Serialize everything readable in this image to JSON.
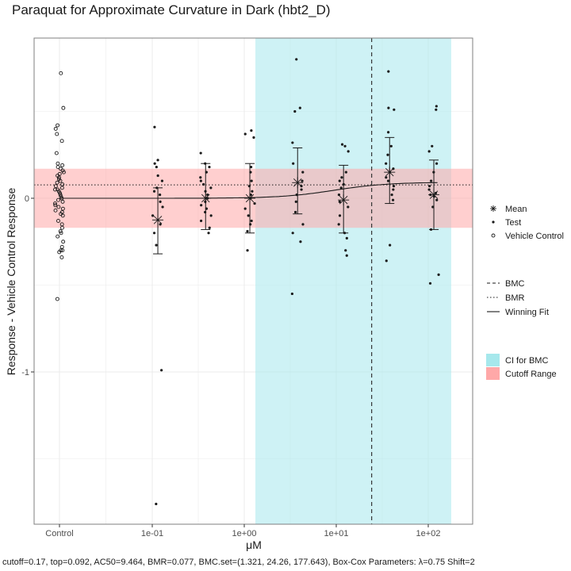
{
  "chart_data": {
    "type": "scatter",
    "title": "Paraquat for Approximate Curvature in Dark (hbt2_D)",
    "xlabel": "μM",
    "ylabel": "Response - Vehicle Control Response",
    "x_scale": "log10",
    "x_ticks": [
      {
        "label": "Control",
        "kind": "control"
      },
      {
        "label": "1e-01",
        "value": 0.1
      },
      {
        "label": "1e+00",
        "value": 1
      },
      {
        "label": "1e+01",
        "value": 10
      },
      {
        "label": "1e+02",
        "value": 100
      }
    ],
    "y_ticks": [
      {
        "label": "0",
        "value": 0
      },
      {
        "label": "-1",
        "value": -1
      }
    ],
    "ylim": [
      -1.88,
      0.93
    ],
    "grid": true,
    "ci_for_bmc": [
      1.321,
      177.643
    ],
    "cutoff_range": [
      -0.17,
      0.17
    ],
    "bmr": 0.077,
    "bmc": 24.26,
    "vehicle_control": [
      0.72,
      0.52,
      0.42,
      0.4,
      0.37,
      0.33,
      0.26,
      0.2,
      0.19,
      0.18,
      0.17,
      0.16,
      0.15,
      0.14,
      0.13,
      0.12,
      0.11,
      0.1,
      0.09,
      0.08,
      0.07,
      0.06,
      0.05,
      0.05,
      0.04,
      0.03,
      0.02,
      0.01,
      0.0,
      -0.01,
      -0.02,
      -0.03,
      -0.04,
      -0.05,
      -0.06,
      -0.07,
      -0.08,
      -0.09,
      -0.1,
      -0.13,
      -0.15,
      -0.17,
      -0.19,
      -0.2,
      -0.22,
      -0.25,
      -0.28,
      -0.3,
      -0.3,
      -0.31,
      -0.34,
      -0.58
    ],
    "test_groups": [
      {
        "conc": 0.115,
        "mean": -0.125,
        "err_low": -0.32,
        "err_high": 0.06,
        "points": [
          0.41,
          0.22,
          0.2,
          0.18,
          0.13,
          0.1,
          0.06,
          0.04,
          0.02,
          -0.02,
          -0.05,
          -0.1,
          -0.15,
          -0.2,
          -0.27,
          -0.99,
          -1.76
        ]
      },
      {
        "conc": 0.38,
        "mean": 0.0,
        "err_low": -0.18,
        "err_high": 0.2,
        "points": [
          0.26,
          0.2,
          0.18,
          0.15,
          0.12,
          0.1,
          0.08,
          0.06,
          0.04,
          0.02,
          0.0,
          -0.02,
          -0.04,
          -0.06,
          -0.08,
          -0.1,
          -0.13,
          -0.17,
          -0.2
        ]
      },
      {
        "conc": 1.15,
        "mean": 0.0,
        "err_low": -0.2,
        "err_high": 0.2,
        "points": [
          0.39,
          0.37,
          0.35,
          0.18,
          0.15,
          0.1,
          0.07,
          0.04,
          0.02,
          0.0,
          -0.03,
          -0.06,
          -0.1,
          -0.13,
          -0.15,
          -0.19,
          -0.3
        ]
      },
      {
        "conc": 3.8,
        "mean": 0.09,
        "err_low": -0.09,
        "err_high": 0.29,
        "points": [
          0.8,
          0.52,
          0.5,
          0.32,
          0.2,
          0.15,
          0.1,
          0.07,
          0.05,
          0.02,
          -0.02,
          -0.08,
          -0.15,
          -0.2,
          -0.25,
          -0.55
        ]
      },
      {
        "conc": 12.0,
        "mean": -0.01,
        "err_low": -0.2,
        "err_high": 0.19,
        "points": [
          0.31,
          0.3,
          0.27,
          0.15,
          0.12,
          0.1,
          0.08,
          0.06,
          0.02,
          -0.02,
          -0.05,
          -0.1,
          -0.15,
          -0.2,
          -0.23,
          -0.3,
          -0.33
        ]
      },
      {
        "conc": 38.0,
        "mean": 0.15,
        "err_low": -0.03,
        "err_high": 0.35,
        "points": [
          0.73,
          0.52,
          0.51,
          0.38,
          0.3,
          0.25,
          0.2,
          0.17,
          0.15,
          0.12,
          0.1,
          0.07,
          0.05,
          0.02,
          -0.01,
          -0.27,
          -0.36
        ]
      },
      {
        "conc": 115.0,
        "mean": 0.02,
        "err_low": -0.18,
        "err_high": 0.22,
        "points": [
          0.53,
          0.51,
          0.3,
          0.27,
          0.2,
          0.15,
          0.1,
          0.07,
          0.05,
          0.03,
          0.02,
          0.01,
          -0.01,
          -0.05,
          -0.18,
          -0.44,
          -0.49
        ]
      }
    ],
    "winning_fit": {
      "type": "hill",
      "bottom": 0.0,
      "top": 0.092,
      "ac50": 9.464,
      "hill": 1.5
    },
    "legend": {
      "shapes": [
        "Mean",
        "Test",
        "Vehicle Control"
      ],
      "lines": [
        "BMC",
        "BMR",
        "Winning Fit"
      ],
      "fills": [
        "CI for BMC",
        "Cutoff Range"
      ],
      "placement": "right"
    },
    "colors": {
      "ci_fill": "#A6E8EC",
      "cutoff_fill": "#FFA8A8",
      "line": "#1a1a1a",
      "panel_border": "#7f7f7f",
      "grid": "#ebebeb"
    },
    "caption": "cutoff=0.17, top=0.092, AC50=9.464, BMR=0.077, BMC.set=(1.321, 24.26, 177.643), Box-Cox Parameters: λ=0.75 Shift=2"
  }
}
